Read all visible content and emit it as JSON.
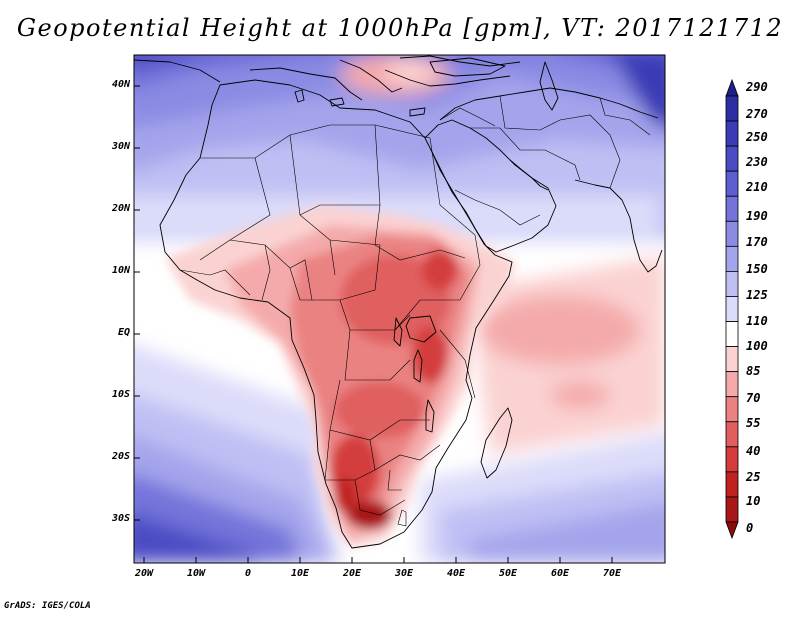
{
  "title": "Geopotential Height at 1000hPa [gpm], VT: 2017121712",
  "credit": "GrADS: IGES/COLA",
  "map": {
    "region": "Africa, Middle East and western Indian Ocean",
    "lon_range": [
      -22,
      81
    ],
    "lat_range": [
      -37,
      45
    ],
    "lat_ticks": [
      "40N",
      "30N",
      "20N",
      "10N",
      "EQ",
      "10S",
      "20S",
      "30S"
    ],
    "lon_ticks": [
      "20W",
      "10W",
      "0",
      "10E",
      "20E",
      "30E",
      "40E",
      "50E",
      "60E",
      "70E"
    ],
    "features": [
      "coastlines",
      "country borders",
      "filled contours"
    ]
  },
  "colorbar": {
    "levels": [
      "290",
      "270",
      "250",
      "230",
      "210",
      "190",
      "170",
      "150",
      "125",
      "110",
      "100",
      "85",
      "70",
      "55",
      "40",
      "25",
      "10",
      "0"
    ],
    "colors": [
      "#20208c",
      "#2d2da4",
      "#3b3bb6",
      "#4b4bc4",
      "#5e5ed0",
      "#7373da",
      "#8b8be4",
      "#a4a4ec",
      "#bfbff4",
      "#dcdcfa",
      "#ffffff",
      "#fbd2d2",
      "#f4aaaa",
      "#ea8282",
      "#e05e5e",
      "#d43c3c",
      "#c02222",
      "#a81616",
      "#8c0c0c"
    ]
  }
}
